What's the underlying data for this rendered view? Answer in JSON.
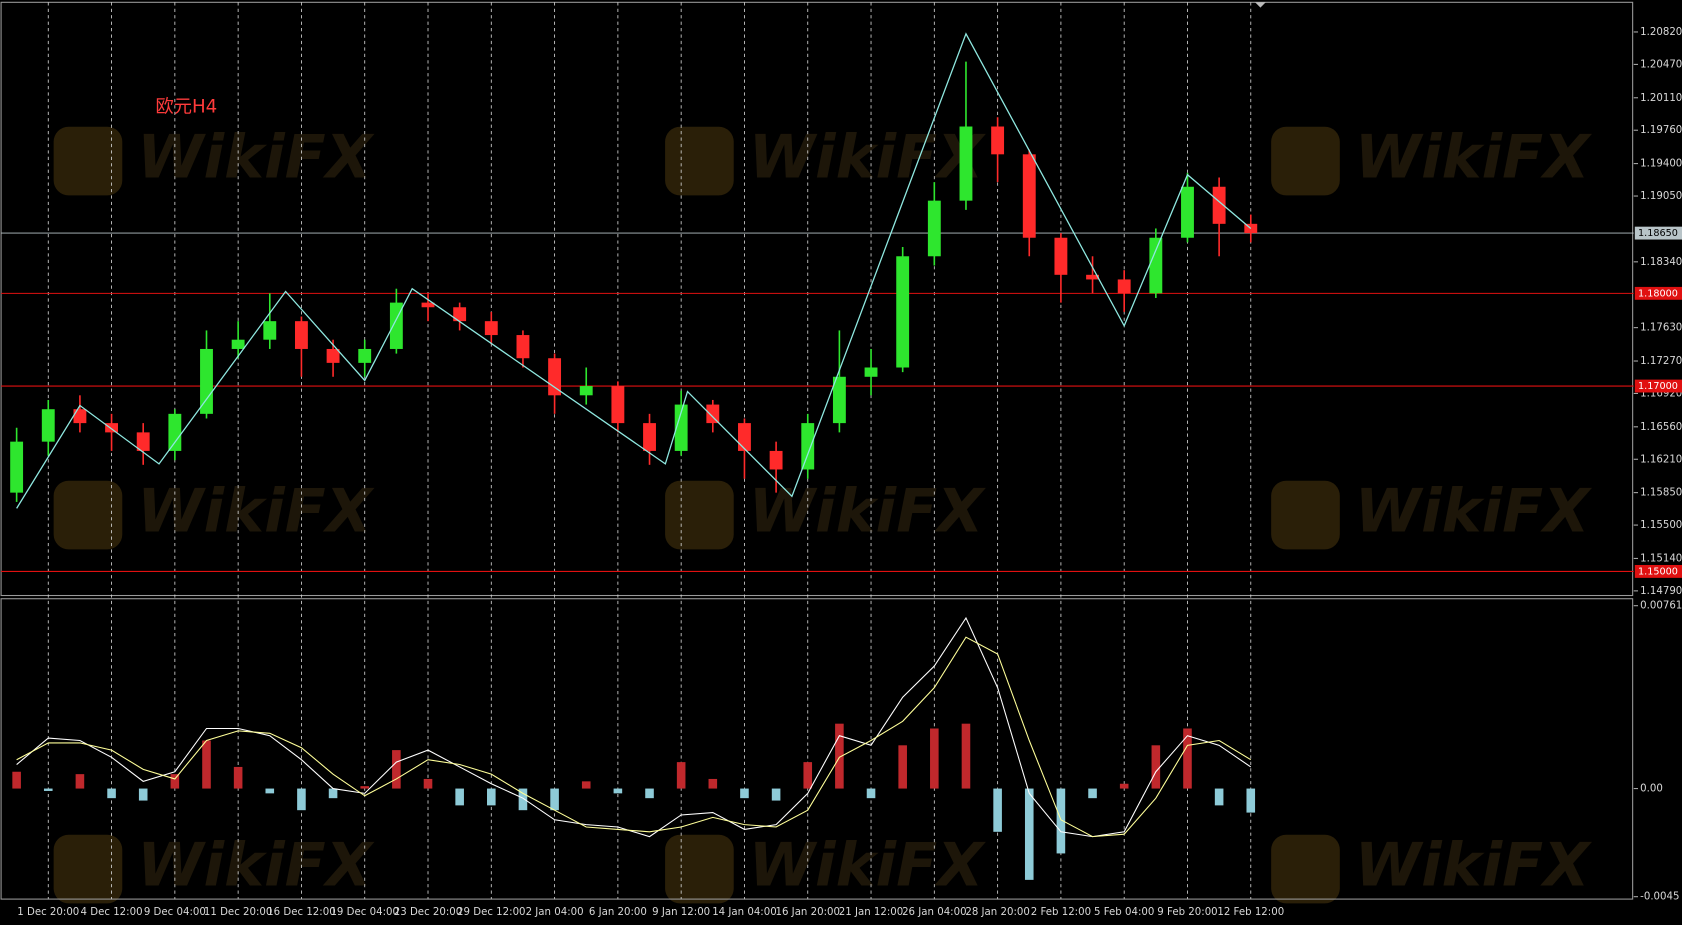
{
  "watermark": "WikiFX",
  "chart_data": [
    {
      "type": "candlestick",
      "title": "欧元H4",
      "categories": [
        null,
        "1 Dec 20:00",
        null,
        "4 Dec 12:00",
        null,
        "9 Dec 04:00",
        null,
        "11 Dec 20:00",
        null,
        "16 Dec 12:00",
        null,
        "19 Dec 04:00",
        null,
        "23 Dec 20:00",
        null,
        "29 Dec 12:00",
        null,
        "2 Jan 04:00",
        null,
        "6 Jan 20:00",
        null,
        "9 Jan 12:00",
        null,
        "14 Jan 04:00",
        null,
        "16 Jan 20:00",
        null,
        "21 Jan 12:00",
        null,
        "26 Jan 04:00",
        null,
        "28 Jan 20:00",
        null,
        "2 Feb 12:00",
        null,
        "5 Feb 04:00",
        null,
        "9 Feb 20:00",
        null,
        "12 Feb 12:00"
      ],
      "open": [
        1.1585,
        1.164,
        1.1675,
        1.166,
        1.165,
        1.163,
        1.167,
        1.174,
        1.175,
        1.177,
        1.174,
        1.1725,
        1.174,
        1.179,
        1.1785,
        1.177,
        1.1755,
        1.173,
        1.169,
        1.17,
        1.166,
        1.163,
        1.168,
        1.166,
        1.163,
        1.161,
        1.166,
        1.171,
        1.172,
        1.184,
        1.19,
        1.198,
        1.195,
        1.186,
        1.182,
        1.1815,
        1.18,
        1.186,
        1.1915,
        1.1875
      ],
      "high": [
        1.1655,
        1.1685,
        1.169,
        1.167,
        1.166,
        1.1675,
        1.176,
        1.177,
        1.18,
        1.1775,
        1.175,
        1.175,
        1.1805,
        1.18,
        1.179,
        1.178,
        1.176,
        1.1735,
        1.172,
        1.1705,
        1.167,
        1.1695,
        1.1685,
        1.1665,
        1.164,
        1.167,
        1.176,
        1.174,
        1.185,
        1.192,
        1.205,
        1.199,
        1.1955,
        1.1865,
        1.184,
        1.1825,
        1.187,
        1.193,
        1.1925,
        1.1885
      ],
      "low": [
        1.1575,
        1.1625,
        1.165,
        1.163,
        1.1615,
        1.162,
        1.1665,
        1.173,
        1.174,
        1.171,
        1.171,
        1.171,
        1.1735,
        1.177,
        1.176,
        1.1745,
        1.172,
        1.167,
        1.168,
        1.165,
        1.1615,
        1.1625,
        1.165,
        1.16,
        1.1585,
        1.16,
        1.165,
        1.169,
        1.1715,
        1.183,
        1.189,
        1.192,
        1.184,
        1.179,
        1.18,
        1.178,
        1.1795,
        1.1855,
        1.184,
        1.1855
      ],
      "close": [
        1.164,
        1.1675,
        1.166,
        1.165,
        1.163,
        1.167,
        1.174,
        1.175,
        1.177,
        1.174,
        1.1725,
        1.174,
        1.179,
        1.1785,
        1.177,
        1.1755,
        1.173,
        1.169,
        1.17,
        1.166,
        1.163,
        1.168,
        1.166,
        1.163,
        1.161,
        1.166,
        1.171,
        1.172,
        1.184,
        1.19,
        1.198,
        1.195,
        1.186,
        1.182,
        1.1815,
        1.18,
        1.186,
        1.1915,
        1.1875,
        1.1865
      ],
      "up_color": "#2ee62e",
      "down_color": "#ff2a2a",
      "ylim": [
        1.1474,
        1.2114
      ],
      "yticks": [
        {
          "value": 1.2082,
          "label": "1.20820"
        },
        {
          "value": 1.2047,
          "label": "1.20470"
        },
        {
          "value": 1.2011,
          "label": "1.20110"
        },
        {
          "value": 1.1976,
          "label": "1.19760"
        },
        {
          "value": 1.194,
          "label": "1.19400"
        },
        {
          "value": 1.1905,
          "label": "1.19050"
        },
        {
          "value": 1.1834,
          "label": "1.18340"
        },
        {
          "value": 1.1763,
          "label": "1.17630"
        },
        {
          "value": 1.1727,
          "label": "1.17270"
        },
        {
          "value": 1.1692,
          "label": "1.16920"
        },
        {
          "value": 1.1656,
          "label": "1.16560"
        },
        {
          "value": 1.1621,
          "label": "1.16210"
        },
        {
          "value": 1.1585,
          "label": "1.15850"
        },
        {
          "value": 1.155,
          "label": "1.15500"
        },
        {
          "value": 1.1514,
          "label": "1.15140"
        },
        {
          "value": 1.1479,
          "label": "1.14790"
        }
      ],
      "levels": [
        {
          "value": 1.18,
          "label": "1.18000",
          "color": "#e01010"
        },
        {
          "value": 1.17,
          "label": "1.17000",
          "color": "#e01010"
        },
        {
          "value": 1.15,
          "label": "1.15000",
          "color": "#e01010"
        }
      ],
      "current_price": {
        "value": 1.1865,
        "label": "1.18650",
        "color": "#b8c4c8"
      },
      "zigzag": {
        "color": "#8fe8e0",
        "x": [
          0,
          2,
          4.5,
          8.5,
          11,
          12.5,
          20.5,
          21.2,
          24.5,
          30,
          35,
          37,
          39
        ],
        "values": [
          1.1568,
          1.1679,
          1.1616,
          1.1802,
          1.1706,
          1.1805,
          1.1616,
          1.1694,
          1.1581,
          1.208,
          1.1765,
          1.1928,
          1.187
        ]
      }
    },
    {
      "type": "macd",
      "ylim": [
        -0.0046,
        0.0079
      ],
      "yticks": [
        {
          "value": 0.00761,
          "label": "0.00761"
        },
        {
          "value": 0,
          "label": "0.00"
        },
        {
          "value": -0.0045,
          "label": "-0.0045"
        }
      ],
      "histogram": {
        "up_color": "#c0282c",
        "down_color": "#8ecbd8",
        "values": [
          0.0007,
          -0.0001,
          0.0006,
          -0.0004,
          -0.0005,
          0.0006,
          0.002,
          0.0009,
          -0.0002,
          -0.0009,
          -0.0004,
          0.0001,
          0.0016,
          0.0004,
          -0.0007,
          -0.0007,
          -0.0009,
          -0.0009,
          0.0003,
          -0.0002,
          -0.0004,
          0.0011,
          0.0004,
          -0.0004,
          -0.0005,
          0.0011,
          0.0027,
          -0.0004,
          0.0018,
          0.0025,
          0.0027,
          -0.0018,
          -0.0038,
          -0.0027,
          -0.0004,
          0.0002,
          0.0018,
          0.0025,
          -0.0007,
          -0.001
        ]
      },
      "lines": [
        {
          "color": "#ffffff",
          "values": [
            0.001,
            0.0021,
            0.002,
            0.0013,
            0.0003,
            0.0007,
            0.0025,
            0.0025,
            0.0022,
            0.0012,
            0,
            -0.0002,
            0.0011,
            0.0016,
            0.0009,
            0.0002,
            -0.0004,
            -0.0013,
            -0.0015,
            -0.0016,
            -0.002,
            -0.0011,
            -0.001,
            -0.0017,
            -0.0015,
            -0.0002,
            0.0022,
            0.0018,
            0.0038,
            0.0051,
            0.0071,
            0.0042,
            -0.0002,
            -0.0018,
            -0.002,
            -0.0018,
            0.0007,
            0.0022,
            0.0018,
            0.0009
          ]
        },
        {
          "color": "#ffff99",
          "values": [
            0.0012,
            0.0019,
            0.0019,
            0.0016,
            0.0008,
            0.0004,
            0.002,
            0.0024,
            0.0023,
            0.0017,
            0.0006,
            -0.0003,
            0.0004,
            0.0012,
            0.001,
            0.0006,
            -0.0002,
            -0.0009,
            -0.0016,
            -0.0017,
            -0.0018,
            -0.0016,
            -0.0012,
            -0.0015,
            -0.0016,
            -0.0009,
            0.0013,
            0.002,
            0.0028,
            0.0042,
            0.0063,
            0.0056,
            0.002,
            -0.0013,
            -0.002,
            -0.0019,
            -0.0004,
            0.0018,
            0.002,
            0.0012
          ]
        }
      ]
    }
  ]
}
